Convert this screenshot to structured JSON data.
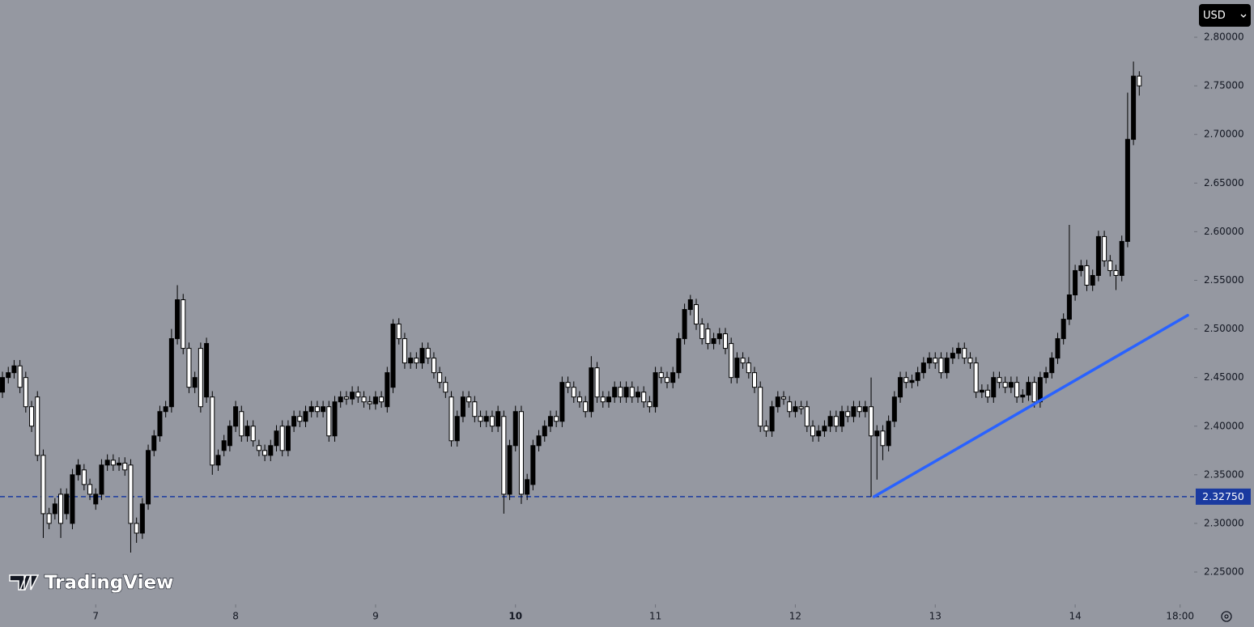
{
  "chart_data": {
    "type": "candlestick",
    "currency": "USD",
    "logo": "TradingView",
    "up_color": "#000000",
    "down_color": "#ffffff",
    "wick_color": "#000000",
    "background": "#9598a1",
    "ylim": [
      2.2184,
      2.8383
    ],
    "yticks": [
      {
        "value": 2.25,
        "label": "2.25000"
      },
      {
        "value": 2.3,
        "label": "2.30000"
      },
      {
        "value": 2.35,
        "label": "2.35000"
      },
      {
        "value": 2.4,
        "label": "2.40000"
      },
      {
        "value": 2.45,
        "label": "2.45000"
      },
      {
        "value": 2.5,
        "label": "2.50000"
      },
      {
        "value": 2.55,
        "label": "2.55000"
      },
      {
        "value": 2.6,
        "label": "2.60000"
      },
      {
        "value": 2.65,
        "label": "2.65000"
      },
      {
        "value": 2.7,
        "label": "2.70000"
      },
      {
        "value": 2.75,
        "label": "2.75000"
      },
      {
        "value": 2.8,
        "label": "2.80000"
      }
    ],
    "xlim": [
      -0.42,
      204.4
    ],
    "xticks": [
      {
        "value": 16,
        "label": "7"
      },
      {
        "value": 40,
        "label": "8"
      },
      {
        "value": 64,
        "label": "9"
      },
      {
        "value": 88,
        "label": "10",
        "bold": true
      },
      {
        "value": 112,
        "label": "11"
      },
      {
        "value": 136,
        "label": "12"
      },
      {
        "value": 160,
        "label": "13"
      },
      {
        "value": 184,
        "label": "14"
      },
      {
        "value": 202,
        "label": "18:00"
      }
    ],
    "hline": {
      "value": 2.3275,
      "label": "2.32750",
      "color": "#1a3aa0"
    },
    "trend_line": {
      "x": [
        149.5,
        203.3
      ],
      "y": [
        2.3275,
        2.514
      ],
      "color": "#2962ff"
    },
    "open": [
      2.435,
      2.45,
      2.455,
      2.462,
      2.45,
      2.42,
      2.43,
      2.37,
      2.31,
      2.31,
      2.33,
      2.31,
      2.3,
      2.35,
      2.355,
      2.34,
      2.32,
      2.33,
      2.36,
      2.365,
      2.36,
      2.362,
      2.36,
      2.3,
      2.29,
      2.32,
      2.375,
      2.39,
      2.415,
      2.42,
      2.49,
      2.53,
      2.48,
      2.44,
      2.48,
      2.43,
      2.43,
      2.36,
      2.375,
      2.38,
      2.4,
      2.415,
      2.39,
      2.4,
      2.38,
      2.375,
      2.37,
      2.38,
      2.4,
      2.375,
      2.4,
      2.41,
      2.405,
      2.415,
      2.42,
      2.415,
      2.42,
      2.39,
      2.425,
      2.43,
      2.428,
      2.435,
      2.43,
      2.425,
      2.423,
      2.43,
      2.42,
      2.44,
      2.505,
      2.49,
      2.465,
      2.47,
      2.465,
      2.48,
      2.47,
      2.455,
      2.445,
      2.43,
      2.385,
      2.41,
      2.43,
      2.425,
      2.41,
      2.405,
      2.41,
      2.4,
      2.41,
      2.33,
      2.38,
      2.415,
      2.33,
      2.34,
      2.38,
      2.39,
      2.4,
      2.41,
      2.405,
      2.445,
      2.44,
      2.43,
      2.425,
      2.415,
      2.46,
      2.43,
      2.425,
      2.43,
      2.44,
      2.43,
      2.44,
      2.43,
      2.435,
      2.425,
      2.42,
      2.455,
      2.45,
      2.445,
      2.455,
      2.49,
      2.52,
      2.525,
      2.505,
      2.5,
      2.485,
      2.49,
      2.495,
      2.485,
      2.45,
      2.47,
      2.465,
      2.455,
      2.44,
      2.4,
      2.395,
      2.42,
      2.43,
      2.425,
      2.415,
      2.42,
      2.42,
      2.4,
      2.39,
      2.395,
      2.4,
      2.41,
      2.4,
      2.415,
      2.41,
      2.42,
      2.415,
      2.42,
      2.39,
      2.395,
      2.38,
      2.405,
      2.43,
      2.45,
      2.445,
      2.447,
      2.455,
      2.465,
      2.47,
      2.47,
      2.455,
      2.47,
      2.475,
      2.48,
      2.47,
      2.465,
      2.435,
      2.437,
      2.43,
      2.45,
      2.445,
      2.44,
      2.445,
      2.43,
      2.432,
      2.445,
      2.425,
      2.45,
      2.455,
      2.47,
      2.49,
      2.51,
      2.535,
      2.56,
      2.565,
      2.545,
      2.555,
      2.595,
      2.57,
      2.56,
      2.555,
      2.59,
      2.695,
      2.76
    ],
    "high": [
      2.456,
      2.461,
      2.468,
      2.468,
      2.456,
      2.426,
      2.436,
      2.376,
      2.316,
      2.326,
      2.336,
      2.336,
      2.356,
      2.366,
      2.361,
      2.346,
      2.336,
      2.366,
      2.371,
      2.371,
      2.368,
      2.368,
      2.366,
      2.306,
      2.326,
      2.381,
      2.396,
      2.421,
      2.426,
      2.5,
      2.545,
      2.536,
      2.486,
      2.456,
      2.486,
      2.491,
      2.436,
      2.376,
      2.391,
      2.406,
      2.426,
      2.421,
      2.406,
      2.406,
      2.386,
      2.381,
      2.386,
      2.401,
      2.406,
      2.406,
      2.416,
      2.416,
      2.421,
      2.426,
      2.426,
      2.426,
      2.426,
      2.431,
      2.436,
      2.436,
      2.441,
      2.441,
      2.436,
      2.431,
      2.436,
      2.436,
      2.461,
      2.51,
      2.511,
      2.496,
      2.476,
      2.476,
      2.486,
      2.486,
      2.476,
      2.461,
      2.451,
      2.436,
      2.416,
      2.436,
      2.436,
      2.431,
      2.416,
      2.416,
      2.416,
      2.421,
      2.416,
      2.386,
      2.421,
      2.421,
      2.351,
      2.386,
      2.396,
      2.406,
      2.416,
      2.416,
      2.451,
      2.451,
      2.446,
      2.436,
      2.431,
      2.472,
      2.466,
      2.436,
      2.436,
      2.446,
      2.446,
      2.446,
      2.446,
      2.441,
      2.441,
      2.431,
      2.461,
      2.461,
      2.456,
      2.461,
      2.496,
      2.526,
      2.535,
      2.531,
      2.511,
      2.506,
      2.496,
      2.501,
      2.501,
      2.491,
      2.476,
      2.476,
      2.471,
      2.461,
      2.446,
      2.406,
      2.426,
      2.436,
      2.436,
      2.431,
      2.426,
      2.426,
      2.426,
      2.406,
      2.401,
      2.406,
      2.416,
      2.416,
      2.421,
      2.421,
      2.426,
      2.426,
      2.426,
      2.45,
      2.401,
      2.401,
      2.411,
      2.436,
      2.456,
      2.456,
      2.453,
      2.461,
      2.471,
      2.476,
      2.476,
      2.476,
      2.476,
      2.481,
      2.486,
      2.486,
      2.476,
      2.471,
      2.443,
      2.443,
      2.456,
      2.456,
      2.451,
      2.451,
      2.451,
      2.438,
      2.451,
      2.451,
      2.456,
      2.461,
      2.476,
      2.496,
      2.516,
      2.607,
      2.566,
      2.571,
      2.571,
      2.561,
      2.601,
      2.601,
      2.576,
      2.566,
      2.596,
      2.743,
      2.775,
      2.765
    ],
    "low": [
      2.429,
      2.444,
      2.449,
      2.434,
      2.414,
      2.394,
      2.364,
      2.285,
      2.294,
      2.304,
      2.285,
      2.304,
      2.294,
      2.344,
      2.334,
      2.324,
      2.314,
      2.324,
      2.354,
      2.354,
      2.354,
      2.349,
      2.27,
      2.28,
      2.284,
      2.314,
      2.369,
      2.384,
      2.409,
      2.414,
      2.484,
      2.474,
      2.434,
      2.434,
      2.414,
      2.424,
      2.35,
      2.354,
      2.369,
      2.374,
      2.394,
      2.384,
      2.384,
      2.379,
      2.369,
      2.364,
      2.364,
      2.374,
      2.369,
      2.369,
      2.394,
      2.399,
      2.399,
      2.409,
      2.409,
      2.409,
      2.384,
      2.384,
      2.419,
      2.422,
      2.422,
      2.424,
      2.419,
      2.417,
      2.417,
      2.419,
      2.414,
      2.434,
      2.484,
      2.459,
      2.459,
      2.459,
      2.459,
      2.464,
      2.449,
      2.439,
      2.429,
      2.379,
      2.379,
      2.404,
      2.419,
      2.404,
      2.399,
      2.399,
      2.394,
      2.394,
      2.31,
      2.324,
      2.374,
      2.32,
      2.324,
      2.334,
      2.374,
      2.384,
      2.394,
      2.399,
      2.399,
      2.434,
      2.424,
      2.419,
      2.409,
      2.409,
      2.424,
      2.419,
      2.419,
      2.424,
      2.424,
      2.424,
      2.424,
      2.424,
      2.419,
      2.414,
      2.414,
      2.444,
      2.439,
      2.439,
      2.449,
      2.484,
      2.514,
      2.499,
      2.484,
      2.479,
      2.479,
      2.484,
      2.474,
      2.444,
      2.444,
      2.459,
      2.449,
      2.434,
      2.394,
      2.389,
      2.389,
      2.414,
      2.422,
      2.409,
      2.409,
      2.412,
      2.394,
      2.384,
      2.384,
      2.389,
      2.394,
      2.394,
      2.394,
      2.404,
      2.404,
      2.409,
      2.409,
      2.3275,
      2.345,
      2.365,
      2.374,
      2.399,
      2.424,
      2.439,
      2.439,
      2.441,
      2.449,
      2.459,
      2.459,
      2.449,
      2.449,
      2.464,
      2.469,
      2.464,
      2.459,
      2.429,
      2.429,
      2.424,
      2.424,
      2.439,
      2.434,
      2.434,
      2.424,
      2.424,
      2.426,
      2.419,
      2.419,
      2.444,
      2.449,
      2.464,
      2.484,
      2.504,
      2.529,
      2.554,
      2.539,
      2.539,
      2.549,
      2.564,
      2.554,
      2.54,
      2.549,
      2.584,
      2.689,
      2.74
    ],
    "close": [
      2.45,
      2.455,
      2.462,
      2.44,
      2.42,
      2.4,
      2.37,
      2.31,
      2.3,
      2.32,
      2.3,
      2.33,
      2.35,
      2.36,
      2.34,
      2.33,
      2.33,
      2.36,
      2.365,
      2.36,
      2.362,
      2.355,
      2.3,
      2.29,
      2.32,
      2.375,
      2.39,
      2.415,
      2.42,
      2.49,
      2.53,
      2.48,
      2.44,
      2.45,
      2.42,
      2.485,
      2.36,
      2.37,
      2.385,
      2.4,
      2.42,
      2.39,
      2.4,
      2.385,
      2.375,
      2.37,
      2.38,
      2.395,
      2.375,
      2.4,
      2.41,
      2.405,
      2.415,
      2.42,
      2.415,
      2.42,
      2.39,
      2.425,
      2.43,
      2.428,
      2.435,
      2.43,
      2.425,
      2.423,
      2.43,
      2.425,
      2.455,
      2.505,
      2.49,
      2.465,
      2.47,
      2.465,
      2.48,
      2.47,
      2.455,
      2.445,
      2.435,
      2.385,
      2.41,
      2.43,
      2.425,
      2.41,
      2.405,
      2.41,
      2.4,
      2.415,
      2.33,
      2.38,
      2.415,
      2.33,
      2.345,
      2.38,
      2.39,
      2.4,
      2.41,
      2.405,
      2.445,
      2.44,
      2.43,
      2.425,
      2.415,
      2.46,
      2.43,
      2.425,
      2.43,
      2.44,
      2.43,
      2.44,
      2.43,
      2.435,
      2.425,
      2.42,
      2.455,
      2.45,
      2.445,
      2.455,
      2.49,
      2.52,
      2.53,
      2.505,
      2.49,
      2.485,
      2.49,
      2.495,
      2.48,
      2.45,
      2.47,
      2.465,
      2.455,
      2.44,
      2.4,
      2.395,
      2.42,
      2.43,
      2.428,
      2.415,
      2.42,
      2.418,
      2.4,
      2.39,
      2.395,
      2.4,
      2.41,
      2.4,
      2.415,
      2.41,
      2.42,
      2.415,
      2.42,
      2.39,
      2.395,
      2.38,
      2.405,
      2.43,
      2.45,
      2.445,
      2.447,
      2.455,
      2.465,
      2.47,
      2.465,
      2.455,
      2.47,
      2.475,
      2.48,
      2.47,
      2.465,
      2.435,
      2.437,
      2.43,
      2.45,
      2.445,
      2.44,
      2.445,
      2.43,
      2.432,
      2.445,
      2.425,
      2.45,
      2.455,
      2.47,
      2.49,
      2.51,
      2.535,
      2.56,
      2.565,
      2.545,
      2.555,
      2.595,
      2.57,
      2.56,
      2.555,
      2.59,
      2.695,
      2.76,
      2.75
    ]
  }
}
